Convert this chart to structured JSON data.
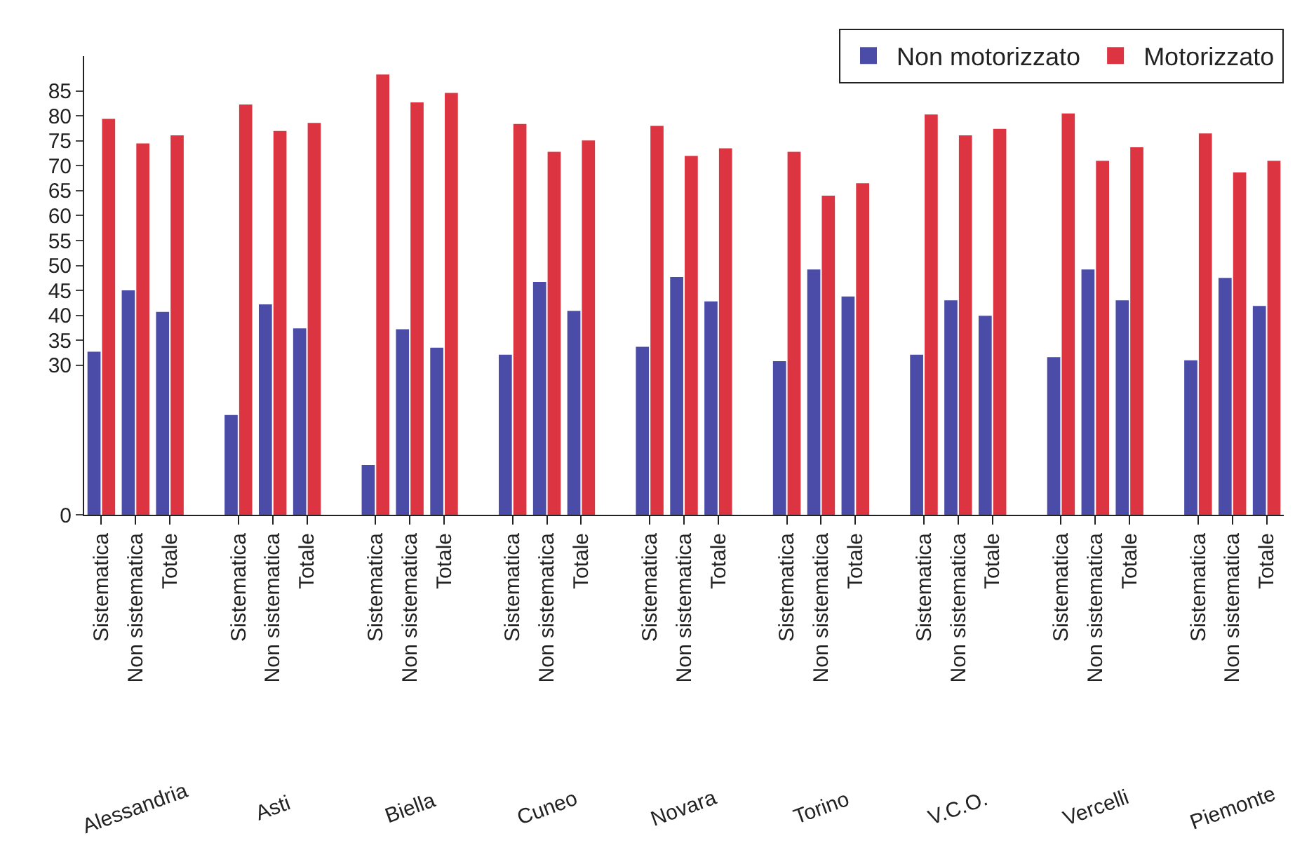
{
  "chart_data": {
    "type": "bar",
    "categories": [
      "Sistematica",
      "Non sistematica",
      "Totale",
      null,
      "Sistematica",
      "Non sistematica",
      "Totale",
      null,
      "Sistematica",
      "Non sistematica",
      "Totale",
      null,
      "Sistematica",
      "Non sistematica",
      "Totale",
      null,
      "Sistematica",
      "Non sistematica",
      "Totale",
      null,
      "Sistematica",
      "Non sistematica",
      "Totale",
      null,
      "Sistematica",
      "Non sistematica",
      "Totale",
      null,
      "Sistematica",
      "Non sistematica",
      "Totale",
      null,
      "Sistematica",
      "Non sistematica",
      "Totale"
    ],
    "annotations": [
      "Alessandria",
      "Asti",
      "Biella",
      "Cuneo",
      "Novara",
      "Torino",
      "V.C.O.",
      "Vercelli",
      "Piemonte"
    ],
    "series": [
      {
        "name": "Non motorizzato",
        "color": "#4b4ba8",
        "values": [
          32.7,
          45.0,
          40.7,
          null,
          20,
          42.2,
          37.4,
          null,
          10,
          37.2,
          33.5,
          null,
          32.1,
          46.7,
          40.9,
          null,
          33.7,
          47.7,
          42.8,
          null,
          30.8,
          49.2,
          43.8,
          null,
          32.1,
          43.0,
          39.9,
          null,
          31.6,
          49.2,
          43.0,
          null,
          31.0,
          47.5,
          41.9
        ]
      },
      {
        "name": "Motorizzato",
        "color": "#dc3440",
        "values": [
          79.4,
          74.5,
          76.1,
          null,
          82.3,
          77.0,
          78.6,
          null,
          88.3,
          82.7,
          84.6,
          null,
          78.4,
          72.8,
          75.1,
          null,
          78.0,
          72.0,
          73.5,
          null,
          72.8,
          64.0,
          66.5,
          null,
          80.3,
          76.1,
          77.4,
          null,
          80.5,
          71.0,
          73.7,
          null,
          76.5,
          68.7,
          71.0
        ]
      }
    ],
    "ylim": [
      0,
      92
    ],
    "yticks": [
      0,
      30,
      35,
      40,
      45,
      50,
      55,
      60,
      65,
      70,
      75,
      80,
      85
    ],
    "grid": false,
    "legend": "top right"
  }
}
